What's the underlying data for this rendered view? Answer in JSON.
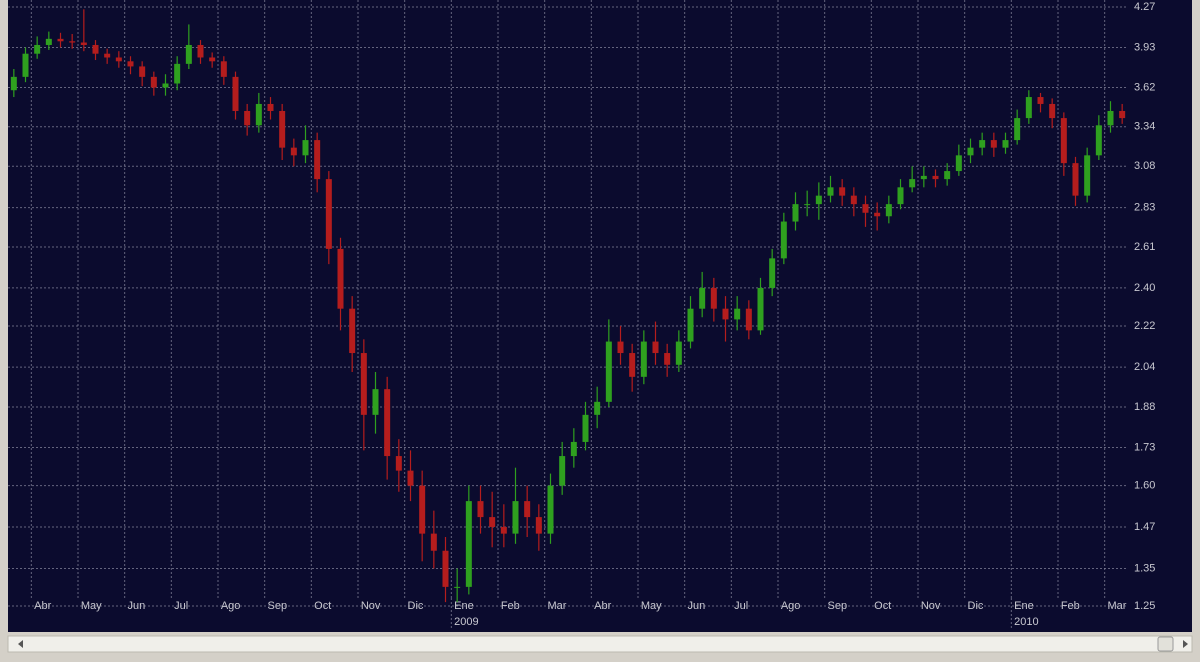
{
  "chart_data": {
    "type": "candlestick",
    "categories": [
      null,
      null,
      "Abr",
      null,
      null,
      null,
      "May",
      null,
      null,
      null,
      "Jun",
      null,
      null,
      null,
      "Jul",
      null,
      null,
      null,
      "Ago",
      null,
      null,
      null,
      "Sep",
      null,
      null,
      null,
      "Oct",
      null,
      null,
      null,
      "Nov",
      null,
      null,
      null,
      "Dic",
      null,
      null,
      null,
      "Ene",
      null,
      null,
      null,
      "Feb",
      null,
      null,
      null,
      "Mar",
      null,
      null,
      null,
      "Abr",
      null,
      null,
      null,
      "May",
      null,
      null,
      null,
      "Jun",
      null,
      null,
      null,
      "Jul",
      null,
      null,
      null,
      "Ago",
      null,
      null,
      null,
      "Sep",
      null,
      null,
      null,
      "Oct",
      null,
      null,
      null,
      "Nov",
      null,
      null,
      null,
      "Dic",
      null,
      null,
      null,
      "Ene",
      null,
      null,
      null,
      "Feb",
      null,
      null,
      null,
      "Mar",
      null
    ],
    "years": [
      null,
      null,
      null,
      null,
      null,
      null,
      null,
      null,
      null,
      null,
      null,
      null,
      null,
      null,
      null,
      null,
      null,
      null,
      null,
      null,
      null,
      null,
      null,
      null,
      null,
      null,
      null,
      null,
      null,
      null,
      null,
      null,
      null,
      null,
      null,
      null,
      null,
      null,
      "2009",
      null,
      null,
      null,
      null,
      null,
      null,
      null,
      null,
      null,
      null,
      null,
      null,
      null,
      null,
      null,
      null,
      null,
      null,
      null,
      null,
      null,
      null,
      null,
      null,
      null,
      null,
      null,
      null,
      null,
      null,
      null,
      null,
      null,
      null,
      null,
      null,
      null,
      null,
      null,
      null,
      null,
      null,
      null,
      null,
      null,
      null,
      null,
      "2010",
      null,
      null,
      null,
      null,
      null,
      null,
      null,
      null,
      null
    ],
    "open": [
      3.6,
      3.7,
      3.88,
      3.95,
      4.0,
      3.98,
      3.97,
      3.95,
      3.88,
      3.85,
      3.82,
      3.78,
      3.7,
      3.62,
      3.65,
      3.8,
      3.95,
      3.85,
      3.82,
      3.7,
      3.45,
      3.35,
      3.5,
      3.45,
      3.2,
      3.15,
      3.25,
      3.0,
      2.6,
      2.3,
      2.1,
      1.85,
      1.95,
      1.7,
      1.65,
      1.6,
      1.45,
      1.4,
      1.3,
      1.3,
      1.55,
      1.5,
      1.47,
      1.45,
      1.55,
      1.5,
      1.45,
      1.6,
      1.7,
      1.75,
      1.85,
      1.9,
      2.15,
      2.1,
      2.0,
      2.15,
      2.1,
      2.05,
      2.15,
      2.3,
      2.4,
      2.3,
      2.25,
      2.3,
      2.2,
      2.4,
      2.55,
      2.75,
      2.85,
      2.85,
      2.9,
      2.95,
      2.9,
      2.85,
      2.8,
      2.78,
      2.85,
      2.95,
      3.0,
      3.02,
      3.0,
      3.05,
      3.15,
      3.2,
      3.25,
      3.2,
      3.25,
      3.4,
      3.55,
      3.5,
      3.4,
      3.1,
      2.9,
      3.15,
      3.35,
      3.45
    ],
    "high": [
      3.76,
      3.93,
      4.02,
      4.06,
      4.05,
      4.04,
      4.25,
      3.99,
      3.92,
      3.9,
      3.86,
      3.82,
      3.74,
      3.72,
      3.86,
      4.12,
      3.99,
      3.89,
      3.86,
      3.74,
      3.5,
      3.58,
      3.55,
      3.5,
      3.26,
      3.35,
      3.3,
      3.05,
      2.66,
      2.36,
      2.16,
      2.02,
      2.0,
      1.76,
      1.72,
      1.65,
      1.52,
      1.44,
      1.35,
      1.6,
      1.6,
      1.58,
      1.54,
      1.66,
      1.6,
      1.54,
      1.64,
      1.75,
      1.8,
      1.9,
      1.96,
      2.25,
      2.22,
      2.14,
      2.2,
      2.24,
      2.14,
      2.2,
      2.36,
      2.48,
      2.45,
      2.36,
      2.36,
      2.34,
      2.45,
      2.6,
      2.8,
      2.92,
      2.93,
      2.98,
      3.02,
      3.0,
      2.95,
      2.9,
      2.86,
      2.9,
      3.0,
      3.08,
      3.08,
      3.06,
      3.1,
      3.22,
      3.26,
      3.3,
      3.3,
      3.3,
      3.46,
      3.6,
      3.58,
      3.54,
      3.44,
      3.14,
      3.2,
      3.42,
      3.52,
      3.5
    ],
    "low": [
      3.55,
      3.66,
      3.84,
      3.91,
      3.93,
      3.92,
      3.9,
      3.83,
      3.8,
      3.77,
      3.72,
      3.63,
      3.56,
      3.56,
      3.6,
      3.76,
      3.8,
      3.77,
      3.64,
      3.39,
      3.28,
      3.3,
      3.39,
      3.12,
      3.08,
      3.1,
      2.92,
      2.52,
      2.2,
      2.02,
      1.72,
      1.78,
      1.62,
      1.58,
      1.55,
      1.37,
      1.35,
      1.26,
      1.26,
      1.28,
      1.45,
      1.41,
      1.41,
      1.42,
      1.44,
      1.4,
      1.42,
      1.57,
      1.66,
      1.72,
      1.8,
      1.88,
      2.05,
      1.94,
      1.97,
      2.05,
      2.0,
      2.02,
      2.12,
      2.26,
      2.24,
      2.15,
      2.2,
      2.16,
      2.18,
      2.36,
      2.52,
      2.7,
      2.78,
      2.76,
      2.86,
      2.84,
      2.78,
      2.72,
      2.7,
      2.74,
      2.82,
      2.92,
      2.95,
      2.95,
      2.96,
      3.02,
      3.1,
      3.15,
      3.14,
      3.16,
      3.22,
      3.36,
      3.44,
      3.33,
      3.02,
      2.84,
      2.86,
      3.12,
      3.3,
      3.36
    ],
    "close": [
      3.7,
      3.88,
      3.95,
      4.0,
      3.98,
      3.97,
      3.95,
      3.88,
      3.85,
      3.82,
      3.78,
      3.7,
      3.62,
      3.65,
      3.8,
      3.95,
      3.85,
      3.82,
      3.7,
      3.45,
      3.35,
      3.5,
      3.45,
      3.2,
      3.15,
      3.25,
      3.0,
      2.6,
      2.3,
      2.1,
      1.85,
      1.95,
      1.7,
      1.65,
      1.6,
      1.45,
      1.4,
      1.3,
      1.3,
      1.55,
      1.5,
      1.47,
      1.45,
      1.55,
      1.5,
      1.45,
      1.6,
      1.7,
      1.75,
      1.85,
      1.9,
      2.15,
      2.1,
      2.0,
      2.15,
      2.1,
      2.05,
      2.15,
      2.3,
      2.4,
      2.3,
      2.25,
      2.3,
      2.2,
      2.4,
      2.55,
      2.75,
      2.85,
      2.85,
      2.9,
      2.95,
      2.9,
      2.85,
      2.8,
      2.78,
      2.85,
      2.95,
      3.0,
      3.02,
      3.0,
      3.05,
      3.15,
      3.2,
      3.25,
      3.2,
      3.25,
      3.4,
      3.55,
      3.5,
      3.4,
      3.1,
      2.9,
      3.15,
      3.35,
      3.45,
      3.4
    ],
    "up_color": "#2fa01f",
    "down_color": "#b51d1d",
    "ylim": [
      1.25,
      4.27
    ],
    "log": true,
    "grid": true,
    "yticks": [
      1.25,
      1.35,
      1.47,
      {
        "value": 1.6,
        "label": "1.60"
      },
      1.73,
      1.88,
      2.04,
      2.22,
      {
        "value": 2.4,
        "label": "2.40"
      },
      2.61,
      2.83,
      3.08,
      3.34,
      3.62,
      3.93,
      4.27
    ]
  }
}
